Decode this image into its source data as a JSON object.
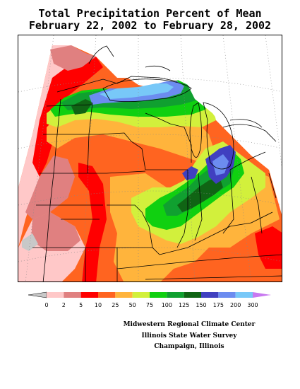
{
  "title": {
    "line1": "Total Precipitation Percent of Mean",
    "line2": "February 22, 2002 to February 28, 2002"
  },
  "legend": {
    "ticks": [
      "0",
      "2",
      "5",
      "10",
      "25",
      "50",
      "75",
      "100",
      "125",
      "150",
      "175",
      "200",
      "300"
    ],
    "colors": {
      "below": "#c8c8c8",
      "bins": [
        "#ffc8c8",
        "#e08080",
        "#ff0000",
        "#ff6420",
        "#ffb43c",
        "#d2f03c",
        "#10d010",
        "#10a030",
        "#106414",
        "#4040c0",
        "#6c8cf0",
        "#78c8f8"
      ],
      "above": "#c878f0"
    }
  },
  "credits": {
    "line1": "Midwestern Regional Climate Center",
    "line2": "Illinois State Water Survey",
    "line3": "Champaign, Illinois"
  }
}
